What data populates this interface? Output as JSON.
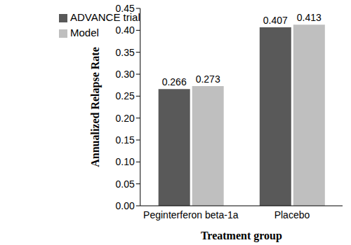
{
  "chart_data": {
    "type": "bar",
    "x_label": "Treatment group",
    "y_label": "Annualized Relapse Rate",
    "categories": [
      "Peginterferon beta-1a",
      "Placebo"
    ],
    "series": [
      {
        "name": "ADVANCE trial",
        "color": "#595959",
        "values": [
          0.266,
          0.407
        ]
      },
      {
        "name": "Model",
        "color": "#bfbfbf",
        "values": [
          0.273,
          0.413
        ]
      }
    ],
    "ylim": [
      0,
      0.45
    ],
    "yticks": [
      {
        "value": 0,
        "label": "0.00"
      },
      {
        "value": 0.05,
        "label": "0.05"
      },
      {
        "value": 0.1,
        "label": "0.10"
      },
      {
        "value": 0.15,
        "label": "0.15"
      },
      {
        "value": 0.2,
        "label": "0.20"
      },
      {
        "value": 0.25,
        "label": "0.25"
      },
      {
        "value": 0.3,
        "label": "0.30"
      },
      {
        "value": 0.35,
        "label": "0.35"
      },
      {
        "value": 0.4,
        "label": "0.40"
      },
      {
        "value": 0.45,
        "label": "0.45"
      }
    ],
    "data_labels": true,
    "legend": "top-left",
    "grid": false
  }
}
